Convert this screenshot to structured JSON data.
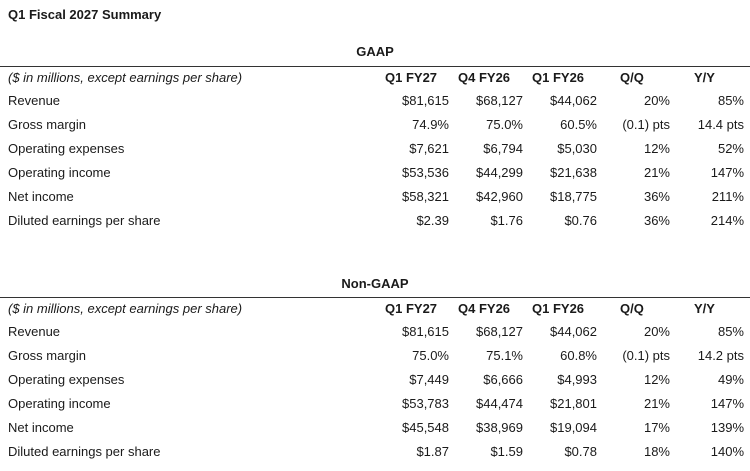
{
  "title": "Q1 Fiscal 2027 Summary",
  "unit_note": "($ in millions, except earnings per share)",
  "columns": [
    "Q1 FY27",
    "Q4 FY26",
    "Q1 FY26",
    "Q/Q",
    "Y/Y"
  ],
  "gaap": {
    "heading": "GAAP",
    "rows": [
      {
        "label": "Revenue",
        "values": [
          "$81,615",
          "$68,127",
          "$44,062",
          "20%",
          "85%"
        ]
      },
      {
        "label": "Gross margin",
        "values": [
          "74.9%",
          "75.0%",
          "60.5%",
          "(0.1) pts",
          "14.4 pts"
        ]
      },
      {
        "label": "Operating expenses",
        "values": [
          "$7,621",
          "$6,794",
          "$5,030",
          "12%",
          "52%"
        ]
      },
      {
        "label": "Operating income",
        "values": [
          "$53,536",
          "$44,299",
          "$21,638",
          "21%",
          "147%"
        ]
      },
      {
        "label": "Net income",
        "values": [
          "$58,321",
          "$42,960",
          "$18,775",
          "36%",
          "211%"
        ]
      },
      {
        "label": "Diluted earnings per share",
        "values": [
          "$2.39",
          "$1.76",
          "$0.76",
          "36%",
          "214%"
        ]
      }
    ]
  },
  "nongaap": {
    "heading": "Non-GAAP",
    "rows": [
      {
        "label": "Revenue",
        "values": [
          "$81,615",
          "$68,127",
          "$44,062",
          "20%",
          "85%"
        ]
      },
      {
        "label": "Gross margin",
        "values": [
          "75.0%",
          "75.1%",
          "60.8%",
          "(0.1) pts",
          "14.2 pts"
        ]
      },
      {
        "label": "Operating expenses",
        "values": [
          "$7,449",
          "$6,666",
          "$4,993",
          "12%",
          "49%"
        ]
      },
      {
        "label": "Operating income",
        "values": [
          "$53,783",
          "$44,474",
          "$21,801",
          "21%",
          "147%"
        ]
      },
      {
        "label": "Net income",
        "values": [
          "$45,548",
          "$38,969",
          "$19,094",
          "17%",
          "139%"
        ]
      },
      {
        "label": "Diluted earnings per share",
        "values": [
          "$1.87",
          "$1.59",
          "$0.78",
          "18%",
          "140%"
        ]
      }
    ]
  }
}
